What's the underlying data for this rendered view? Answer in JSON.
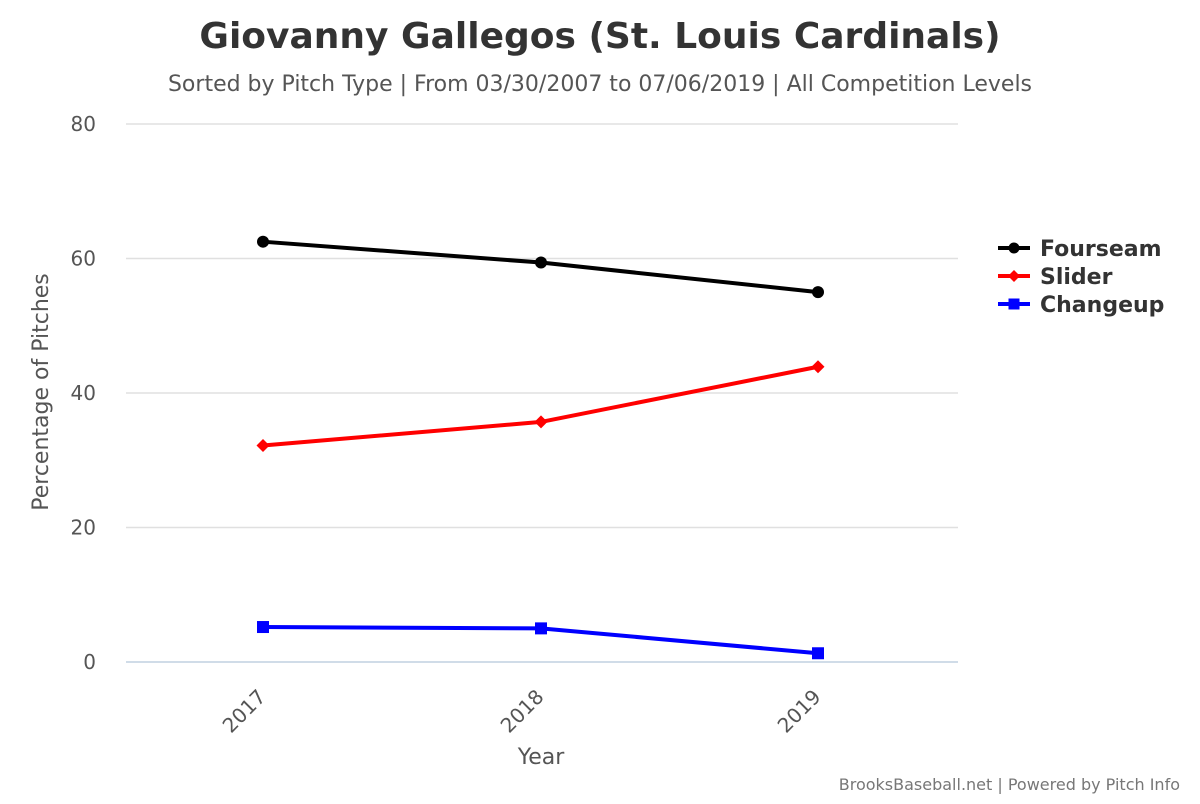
{
  "chart_data": {
    "type": "line",
    "title": "Giovanny Gallegos (St. Louis Cardinals)",
    "subtitle": "Sorted by Pitch Type | From 03/30/2007 to 07/06/2019 | All Competition Levels",
    "xlabel": "Year",
    "ylabel": "Percentage of Pitches",
    "categories": [
      "2017",
      "2018",
      "2019"
    ],
    "ylim": [
      0,
      80
    ],
    "yticks": [
      0,
      20,
      40,
      60,
      80
    ],
    "grid": true,
    "legend_position": "right",
    "series": [
      {
        "name": "Fourseam",
        "color": "#000000",
        "marker": "circle",
        "values": [
          62.5,
          59.4,
          55.0
        ]
      },
      {
        "name": "Slider",
        "color": "#ff0000",
        "marker": "diamond",
        "values": [
          32.2,
          35.7,
          43.9
        ]
      },
      {
        "name": "Changeup",
        "color": "#0000ff",
        "marker": "square",
        "values": [
          5.2,
          5.0,
          1.3
        ]
      }
    ],
    "credits": "BrooksBaseball.net | Powered by Pitch Info"
  }
}
